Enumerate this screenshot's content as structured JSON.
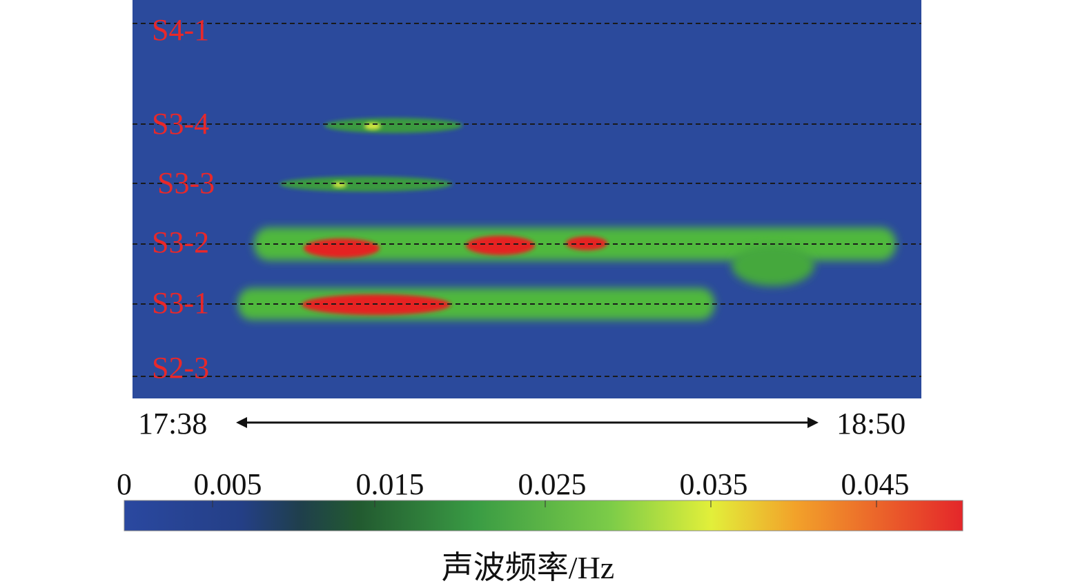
{
  "chart_data": {
    "type": "heatmap",
    "title": "",
    "rows": [
      {
        "label": "S4-1",
        "value": 0.0
      },
      {
        "label": "S3-4",
        "value": 0.02
      },
      {
        "label": "S3-3",
        "value": 0.018
      },
      {
        "label": "S3-2",
        "value": 0.045
      },
      {
        "label": "S3-1",
        "value": 0.045
      },
      {
        "label": "S2-3",
        "value": 0.0
      }
    ],
    "time_range": [
      "17:38",
      "18:50"
    ],
    "colorbar": {
      "min": 0,
      "max": 0.05,
      "ticks": [
        "0",
        "0.005",
        "0.015",
        "0.025",
        "0.035",
        "0.045"
      ],
      "label": "声波频率/Hz",
      "colors": [
        "#2a48a0",
        "#22497a",
        "#1f5a2e",
        "#3aa34a",
        "#8fd64a",
        "#e8f23a",
        "#f3a42a",
        "#e82a2a"
      ]
    },
    "colors": {
      "background": "#2b4a9c",
      "row_label": "#e8282a",
      "high": "#e52222",
      "mid": "#4fbf3c",
      "line": "#1a1a1a"
    }
  }
}
